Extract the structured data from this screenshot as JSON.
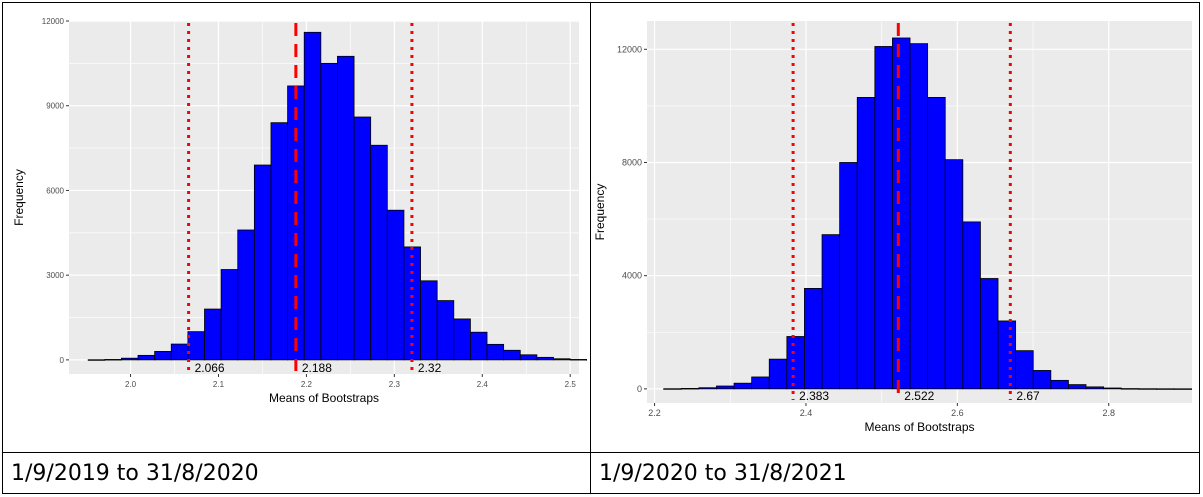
{
  "table": {
    "rows": [
      {
        "cells": [
          {
            "chart_index": 0
          },
          {
            "chart_index": 1
          }
        ]
      },
      {
        "cells": [
          {
            "text": "1/9/2019 to 31/8/2020"
          },
          {
            "text": "1/9/2020 to 31/8/2021"
          }
        ]
      }
    ]
  },
  "colors": {
    "bar_fill": "#0000ff",
    "bar_stroke": "#000000",
    "panel_bg": "#ebebeb",
    "grid": "#ffffff",
    "ref_line": "#ff0000"
  },
  "chart_data": [
    {
      "type": "bar",
      "title": "",
      "xlabel": "Means of Bootstraps",
      "ylabel": "Frequency",
      "xlim": [
        1.93,
        2.51
      ],
      "ylim": [
        -500,
        12000
      ],
      "xticks": [
        "2.0",
        "2.1",
        "2.2",
        "2.3",
        "2.4",
        "2.5"
      ],
      "xtick_values": [
        2.0,
        2.1,
        2.2,
        2.3,
        2.4,
        2.5
      ],
      "yticks": [
        "0",
        "3000",
        "6000",
        "9000",
        "12000"
      ],
      "ytick_values": [
        0,
        3000,
        6000,
        9000,
        12000
      ],
      "bin_start": 1.9518,
      "bin_width": 0.0189,
      "values": [
        5,
        15,
        60,
        160,
        300,
        560,
        1000,
        1800,
        3200,
        4600,
        6900,
        8400,
        9700,
        11600,
        10500,
        10750,
        8600,
        7600,
        5300,
        4000,
        2800,
        2100,
        1450,
        980,
        550,
        340,
        180,
        90,
        40,
        15,
        8,
        5,
        3
      ],
      "reference_lines": [
        {
          "value": 2.066,
          "label": "2.066",
          "style": "dotted"
        },
        {
          "value": 2.188,
          "label": "2.188",
          "style": "dashed"
        },
        {
          "value": 2.32,
          "label": "2.32",
          "style": "dotted"
        }
      ],
      "grid": true,
      "legend": "none"
    },
    {
      "type": "bar",
      "title": "",
      "xlabel": "Means of Bootstraps",
      "ylabel": "Frequency",
      "xlim": [
        2.19,
        2.91
      ],
      "ylim": [
        -500,
        13000
      ],
      "xticks": [
        "2.2",
        "2.4",
        "2.6",
        "2.8"
      ],
      "xtick_values": [
        2.2,
        2.4,
        2.6,
        2.8
      ],
      "yticks": [
        "0",
        "4000",
        "8000",
        "12000"
      ],
      "ytick_values": [
        0,
        4000,
        8000,
        12000
      ],
      "bin_start": 2.212,
      "bin_width": 0.02325,
      "values": [
        5,
        15,
        40,
        100,
        200,
        420,
        1050,
        1850,
        3550,
        5450,
        8000,
        10300,
        12100,
        12400,
        12200,
        10300,
        8100,
        5900,
        3900,
        2400,
        1350,
        650,
        300,
        150,
        70,
        30,
        10,
        5,
        3,
        2
      ],
      "reference_lines": [
        {
          "value": 2.383,
          "label": "2.383",
          "style": "dotted"
        },
        {
          "value": 2.522,
          "label": "2.522",
          "style": "dashed"
        },
        {
          "value": 2.67,
          "label": "2.67",
          "style": "dotted"
        }
      ],
      "grid": true,
      "legend": "none"
    }
  ]
}
